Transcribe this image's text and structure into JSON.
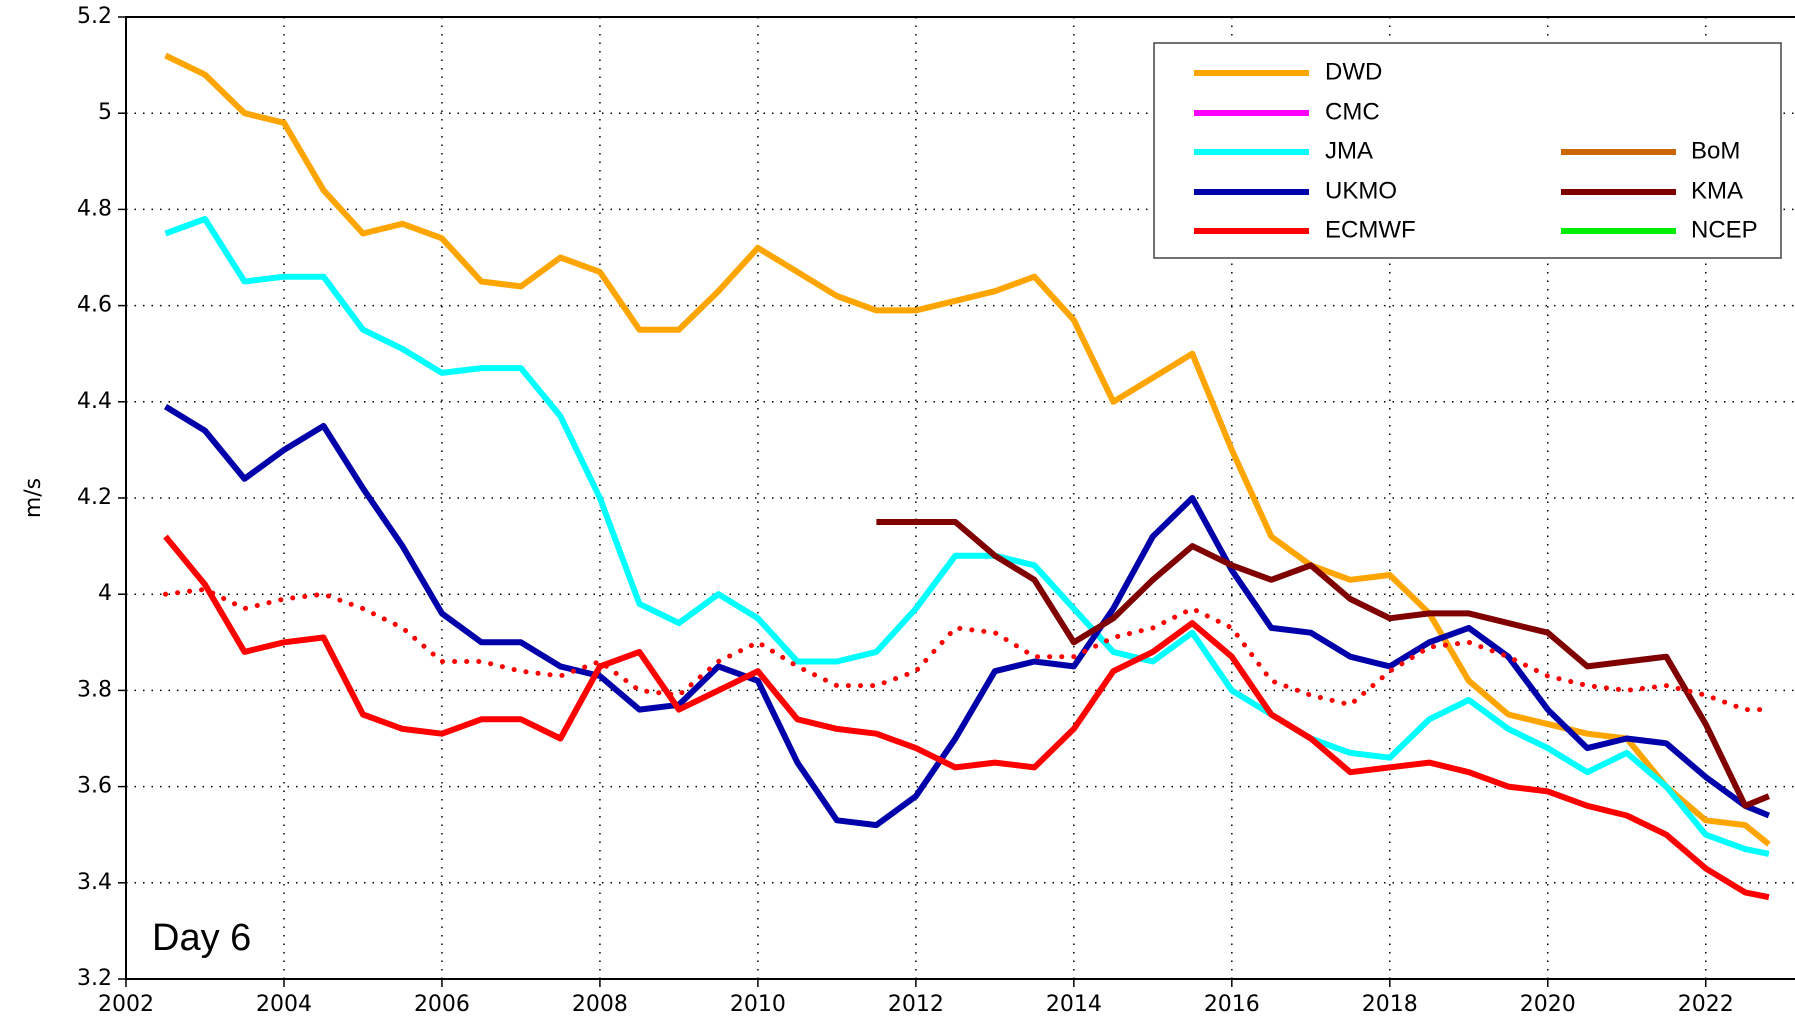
{
  "chart_data": {
    "type": "line",
    "y_label": "m/s",
    "annotation": "Day 6",
    "xlim": [
      2002,
      2023.13
    ],
    "xticks": [
      2002,
      2004,
      2006,
      2008,
      2010,
      2012,
      2014,
      2016,
      2018,
      2020,
      2022
    ],
    "ylim": [
      3.2,
      5.2
    ],
    "yticks": [
      3.2,
      3.4,
      3.6,
      3.8,
      4,
      4.2,
      4.4,
      4.6,
      4.8,
      5,
      5.2
    ],
    "grid": true,
    "legend": "upper right",
    "x": [
      2002.5,
      2003,
      2003.5,
      2004,
      2004.5,
      2005,
      2005.5,
      2006,
      2006.5,
      2007,
      2007.5,
      2008,
      2008.5,
      2009,
      2009.5,
      2010,
      2010.5,
      2011,
      2011.5,
      2012,
      2012.5,
      2013,
      2013.5,
      2014,
      2014.5,
      2015,
      2015.5,
      2016,
      2016.5,
      2017,
      2017.5,
      2018,
      2018.5,
      2019,
      2019.5,
      2020,
      2020.5,
      2021,
      2021.5,
      2022,
      2022.5,
      2022.8
    ],
    "series": [
      {
        "name": "DWD",
        "color": "#ffa500",
        "values": [
          5.12,
          5.08,
          5.0,
          4.98,
          4.84,
          4.75,
          4.77,
          4.74,
          4.65,
          4.64,
          4.7,
          4.67,
          4.55,
          4.55,
          4.63,
          4.72,
          4.67,
          4.62,
          4.59,
          4.59,
          4.61,
          4.63,
          4.66,
          4.57,
          4.4,
          4.45,
          4.5,
          4.3,
          4.12,
          4.06,
          4.03,
          4.04,
          3.96,
          3.82,
          3.75,
          3.73,
          3.71,
          3.7,
          3.6,
          3.53,
          3.52,
          3.48
        ]
      },
      {
        "name": "CMC",
        "color": "#ff00ff",
        "values": [
          null,
          null,
          null,
          null,
          null,
          null,
          null,
          null,
          null,
          null,
          null,
          null,
          null,
          null,
          null,
          null,
          null,
          null,
          null,
          null,
          null,
          null,
          null,
          null,
          null,
          null,
          null,
          null,
          null,
          null,
          null,
          null,
          null,
          null,
          null,
          null,
          null,
          null,
          null,
          null,
          null,
          null
        ]
      },
      {
        "name": "JMA",
        "color": "#00ffff",
        "values": [
          4.75,
          4.78,
          4.65,
          4.66,
          4.66,
          4.55,
          4.51,
          4.46,
          4.47,
          4.47,
          4.37,
          4.2,
          3.98,
          3.94,
          4.0,
          3.95,
          3.86,
          3.86,
          3.88,
          3.97,
          4.08,
          4.08,
          4.06,
          3.97,
          3.88,
          3.86,
          3.92,
          3.8,
          3.75,
          3.7,
          3.67,
          3.66,
          3.74,
          3.78,
          3.72,
          3.68,
          3.63,
          3.67,
          3.6,
          3.5,
          3.47,
          3.46
        ]
      },
      {
        "name": "UKMO",
        "color": "#0000aa",
        "values": [
          4.39,
          4.34,
          4.24,
          4.3,
          4.35,
          4.22,
          4.1,
          3.96,
          3.9,
          3.9,
          3.85,
          3.83,
          3.76,
          3.77,
          3.85,
          3.82,
          3.65,
          3.53,
          3.52,
          3.58,
          3.7,
          3.84,
          3.86,
          3.85,
          3.97,
          4.12,
          4.2,
          4.05,
          3.93,
          3.92,
          3.87,
          3.85,
          3.9,
          3.93,
          3.87,
          3.76,
          3.68,
          3.7,
          3.69,
          3.62,
          3.56,
          3.54
        ]
      },
      {
        "name": "ECMWF",
        "color": "#ff0000",
        "values": [
          4.12,
          4.02,
          3.88,
          3.9,
          3.91,
          3.75,
          3.72,
          3.71,
          3.74,
          3.74,
          3.7,
          3.85,
          3.88,
          3.76,
          3.8,
          3.84,
          3.74,
          3.72,
          3.71,
          3.68,
          3.64,
          3.65,
          3.64,
          3.72,
          3.84,
          3.88,
          3.94,
          3.87,
          3.75,
          3.7,
          3.63,
          3.64,
          3.65,
          3.63,
          3.6,
          3.59,
          3.56,
          3.54,
          3.5,
          3.43,
          3.38,
          3.37
        ]
      },
      {
        "name": "BoM",
        "color": "#cc6600",
        "values": [
          null,
          null,
          null,
          null,
          null,
          null,
          null,
          null,
          null,
          null,
          null,
          null,
          null,
          null,
          null,
          null,
          null,
          null,
          null,
          null,
          null,
          null,
          null,
          null,
          null,
          null,
          null,
          null,
          null,
          null,
          null,
          null,
          null,
          null,
          null,
          null,
          null,
          null,
          null,
          null,
          null,
          null
        ]
      },
      {
        "name": "KMA",
        "color": "#800000",
        "values": [
          null,
          null,
          null,
          null,
          null,
          null,
          null,
          null,
          null,
          null,
          null,
          null,
          null,
          null,
          null,
          null,
          null,
          null,
          4.15,
          4.15,
          4.15,
          4.08,
          4.03,
          3.9,
          3.95,
          4.03,
          4.1,
          4.06,
          4.03,
          4.06,
          3.99,
          3.95,
          3.96,
          3.96,
          3.94,
          3.92,
          3.85,
          3.86,
          3.87,
          3.73,
          3.56,
          3.58
        ]
      },
      {
        "name": "NCEP",
        "color": "#00ee00",
        "values": [
          null,
          null,
          null,
          null,
          null,
          null,
          null,
          null,
          null,
          null,
          null,
          null,
          null,
          null,
          null,
          null,
          null,
          null,
          null,
          null,
          null,
          null,
          null,
          null,
          null,
          null,
          null,
          null,
          null,
          null,
          null,
          null,
          null,
          null,
          null,
          null,
          null,
          null,
          null,
          null,
          null,
          null
        ]
      },
      {
        "color": "#ff0000",
        "style": "dotted",
        "values": [
          4.0,
          4.01,
          3.97,
          3.99,
          4.0,
          3.97,
          3.93,
          3.86,
          3.86,
          3.84,
          3.83,
          3.86,
          3.8,
          3.79,
          3.86,
          3.9,
          3.85,
          3.81,
          3.81,
          3.84,
          3.93,
          3.92,
          3.87,
          3.87,
          3.91,
          3.93,
          3.97,
          3.93,
          3.82,
          3.79,
          3.77,
          3.84,
          3.89,
          3.9,
          3.87,
          3.83,
          3.81,
          3.8,
          3.81,
          3.79,
          3.76,
          3.76
        ]
      }
    ]
  }
}
